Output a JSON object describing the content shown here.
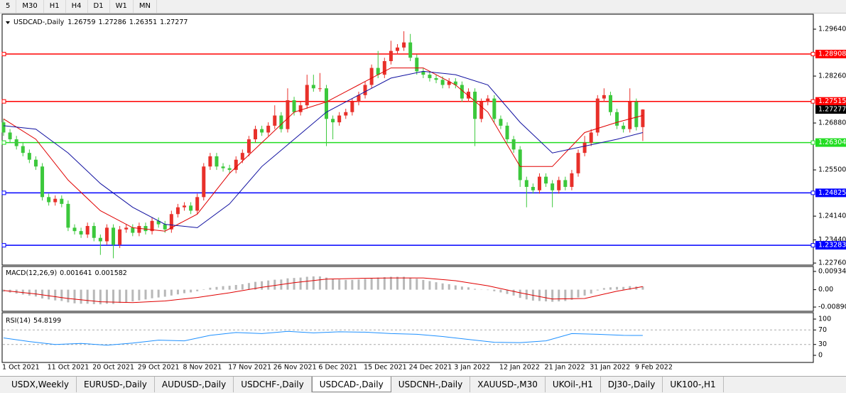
{
  "toolbar": {
    "timeframes": [
      "5",
      "M30",
      "H1",
      "H4",
      "D1",
      "W1",
      "MN"
    ]
  },
  "chart_data": [
    {
      "type": "candlestick",
      "title": "USDCAD-,Daily",
      "categories": [
        "1 Oct 2021",
        null,
        null,
        null,
        null,
        null,
        null,
        "11 Oct 2021",
        null,
        null,
        null,
        null,
        null,
        null,
        "20 Oct 2021",
        null,
        null,
        null,
        null,
        null,
        null,
        "29 Oct 2021",
        null,
        null,
        null,
        null,
        null,
        null,
        "8 Nov 2021",
        null,
        null,
        null,
        null,
        null,
        null,
        "17 Nov 2021",
        null,
        null,
        null,
        null,
        null,
        null,
        "26 Nov 2021",
        null,
        null,
        null,
        null,
        null,
        null,
        "6 Dec 2021",
        null,
        null,
        null,
        null,
        null,
        null,
        "15 Dec 2021",
        null,
        null,
        null,
        null,
        null,
        null,
        "24 Dec 2021",
        null,
        null,
        null,
        null,
        null,
        null,
        "3 Jan 2022",
        null,
        null,
        null,
        null,
        null,
        null,
        "12 Jan 2022",
        null,
        null,
        null,
        null,
        null,
        null,
        "21 Jan 2022",
        null,
        null,
        null,
        null,
        null,
        null,
        "31 Jan 2022",
        null,
        null,
        null,
        null,
        null,
        null,
        "9 Feb 2022",
        null
      ],
      "open": [
        1.269,
        1.266,
        1.264,
        1.262,
        1.26,
        1.258,
        1.256,
        1.247,
        1.2455,
        1.2465,
        1.245,
        1.238,
        1.237,
        1.236,
        1.2385,
        1.235,
        1.234,
        1.238,
        1.233,
        1.2375,
        1.238,
        1.2365,
        1.2385,
        1.237,
        1.24,
        1.239,
        1.2375,
        1.242,
        1.244,
        1.2445,
        1.243,
        1.247,
        1.256,
        1.259,
        1.256,
        1.2555,
        1.255,
        1.258,
        1.26,
        1.264,
        1.267,
        1.266,
        1.268,
        1.271,
        1.267,
        1.2755,
        1.272,
        1.274,
        1.28,
        1.279,
        1.279,
        1.27,
        1.269,
        1.271,
        1.272,
        1.275,
        1.277,
        1.28,
        1.285,
        1.283,
        1.287,
        1.29,
        1.291,
        1.2925,
        1.288,
        1.284,
        1.283,
        1.282,
        1.2815,
        1.28,
        1.281,
        1.28,
        1.276,
        1.278,
        1.27,
        1.275,
        1.276,
        1.27,
        1.268,
        1.264,
        1.261,
        1.252,
        1.25,
        1.249,
        1.253,
        1.251,
        1.249,
        1.252,
        1.25,
        1.254,
        1.26,
        1.263,
        1.266,
        1.276,
        1.277,
        1.272,
        1.268,
        1.267,
        1.275,
        1.26759
      ],
      "high": [
        1.27,
        1.267,
        1.265,
        1.263,
        1.261,
        1.259,
        1.257,
        1.248,
        1.2475,
        1.2475,
        1.246,
        1.239,
        1.238,
        1.2395,
        1.2395,
        1.236,
        1.239,
        1.239,
        1.2385,
        1.239,
        1.239,
        1.2395,
        1.2395,
        1.241,
        1.241,
        1.24,
        1.243,
        1.245,
        1.2455,
        1.2455,
        1.248,
        1.257,
        1.26,
        1.26,
        1.257,
        1.2565,
        1.259,
        1.261,
        1.265,
        1.268,
        1.268,
        1.269,
        1.274,
        1.272,
        1.279,
        1.2765,
        1.275,
        1.283,
        1.283,
        1.2835,
        1.28,
        1.271,
        1.272,
        1.273,
        1.276,
        1.278,
        1.281,
        1.286,
        1.29,
        1.288,
        1.293,
        1.292,
        1.2958,
        1.295,
        1.289,
        1.285,
        1.284,
        1.283,
        1.2825,
        1.282,
        1.282,
        1.281,
        1.279,
        1.279,
        1.276,
        1.277,
        1.277,
        1.271,
        1.269,
        1.265,
        1.262,
        1.253,
        1.251,
        1.254,
        1.254,
        1.252,
        1.253,
        1.253,
        1.255,
        1.261,
        1.265,
        1.267,
        1.277,
        1.279,
        1.278,
        1.273,
        1.269,
        1.279,
        1.276,
        1.27286
      ],
      "low": [
        1.265,
        1.263,
        1.261,
        1.259,
        1.257,
        1.255,
        1.246,
        1.2445,
        1.2445,
        1.244,
        1.237,
        1.236,
        1.235,
        1.235,
        1.234,
        1.23,
        1.233,
        1.229,
        1.232,
        1.2365,
        1.2355,
        1.2355,
        1.236,
        1.236,
        1.238,
        1.2365,
        1.2365,
        1.241,
        1.243,
        1.242,
        1.242,
        1.246,
        1.255,
        1.255,
        1.2545,
        1.254,
        1.254,
        1.257,
        1.259,
        1.263,
        1.265,
        1.265,
        1.267,
        1.266,
        1.266,
        1.271,
        1.271,
        1.273,
        1.278,
        1.278,
        1.262,
        1.264,
        1.268,
        1.27,
        1.271,
        1.274,
        1.276,
        1.279,
        1.282,
        1.282,
        1.286,
        1.289,
        1.29,
        1.287,
        1.283,
        1.282,
        1.281,
        1.2805,
        1.279,
        1.279,
        1.279,
        1.275,
        1.275,
        1.262,
        1.269,
        1.274,
        1.269,
        1.267,
        1.263,
        1.26,
        1.25,
        1.244,
        1.248,
        1.248,
        1.25,
        1.244,
        1.248,
        1.249,
        1.249,
        1.253,
        1.259,
        1.262,
        1.265,
        1.275,
        1.271,
        1.267,
        1.266,
        1.266,
        1.2666,
        1.26351
      ],
      "close": [
        1.266,
        1.264,
        1.262,
        1.26,
        1.258,
        1.256,
        1.247,
        1.2455,
        1.2465,
        1.245,
        1.238,
        1.237,
        1.236,
        1.2385,
        1.235,
        1.234,
        1.238,
        1.233,
        1.2375,
        1.238,
        1.2365,
        1.2385,
        1.237,
        1.24,
        1.239,
        1.2375,
        1.242,
        1.244,
        1.2445,
        1.243,
        1.247,
        1.256,
        1.259,
        1.256,
        1.2555,
        1.255,
        1.258,
        1.26,
        1.264,
        1.267,
        1.266,
        1.268,
        1.271,
        1.267,
        1.2755,
        1.272,
        1.274,
        1.28,
        1.279,
        1.279,
        1.27,
        1.269,
        1.271,
        1.272,
        1.275,
        1.277,
        1.28,
        1.285,
        1.283,
        1.287,
        1.29,
        1.291,
        1.2925,
        1.288,
        1.284,
        1.283,
        1.282,
        1.2815,
        1.28,
        1.281,
        1.28,
        1.276,
        1.278,
        1.27,
        1.275,
        1.276,
        1.27,
        1.268,
        1.264,
        1.261,
        1.252,
        1.25,
        1.249,
        1.253,
        1.251,
        1.249,
        1.252,
        1.25,
        1.254,
        1.26,
        1.263,
        1.266,
        1.276,
        1.277,
        1.272,
        1.268,
        1.267,
        1.275,
        1.2676,
        1.27277
      ],
      "up_color": "#e8302a",
      "down_color": "#3cc83c",
      "series": [
        {
          "color": "#e00000",
          "x": [
            0,
            5,
            10,
            15,
            20,
            25,
            30,
            35,
            40,
            45,
            50,
            55,
            60,
            65,
            70,
            75,
            80,
            85,
            90,
            95,
            99
          ],
          "values": [
            1.27,
            1.264,
            1.252,
            1.243,
            1.238,
            1.237,
            1.242,
            1.254,
            1.263,
            1.272,
            1.275,
            1.28,
            1.285,
            1.285,
            1.28,
            1.272,
            1.256,
            1.256,
            1.266,
            1.269,
            1.271
          ]
        },
        {
          "color": "#1010a0",
          "x": [
            0,
            5,
            10,
            15,
            20,
            25,
            30,
            35,
            40,
            45,
            50,
            55,
            60,
            65,
            70,
            75,
            80,
            85,
            90,
            95,
            99
          ],
          "values": [
            1.268,
            1.267,
            1.26,
            1.251,
            1.244,
            1.239,
            1.238,
            1.245,
            1.256,
            1.264,
            1.272,
            1.277,
            1.282,
            1.284,
            1.283,
            1.28,
            1.269,
            1.26,
            1.262,
            1.264,
            1.266
          ]
        }
      ],
      "levels": [
        {
          "value": 1.28908,
          "color": "#ff0000"
        },
        {
          "value": 1.27515,
          "color": "#ff0000"
        },
        {
          "value": 1.26304,
          "color": "#22dd22"
        },
        {
          "value": 1.24825,
          "color": "#0000ff"
        },
        {
          "value": 1.23283,
          "color": "#0000ff"
        }
      ],
      "ylim": [
        1.227,
        1.3008
      ],
      "yticks": [
        {
          "value": 1.2964,
          "label": "1.29640"
        },
        {
          "value": 1.2826,
          "label": "1.28260"
        },
        {
          "value": 1.2688,
          "label": "1.26880"
        },
        {
          "value": 1.255,
          "label": "1.25500"
        },
        {
          "value": 1.2414,
          "label": "1.24140"
        },
        {
          "value": 1.2344,
          "label": "1.23440"
        },
        {
          "value": 1.2276,
          "label": "1.22760"
        }
      ]
    },
    {
      "type": "macd",
      "title": "MACD(12,26,9)",
      "histogram": {
        "color": "#b8b8b8",
        "values": [
          -0.001,
          -0.0015,
          -0.002,
          -0.0025,
          -0.003,
          -0.0035,
          -0.0045,
          -0.005,
          -0.0055,
          -0.0058,
          -0.0065,
          -0.007,
          -0.0072,
          -0.0072,
          -0.0074,
          -0.0075,
          -0.0072,
          -0.0073,
          -0.0068,
          -0.0064,
          -0.006,
          -0.0055,
          -0.005,
          -0.0044,
          -0.004,
          -0.0036,
          -0.003,
          -0.0024,
          -0.0018,
          -0.0014,
          -0.0008,
          0.0002,
          0.001,
          0.0014,
          0.0018,
          0.002,
          0.0024,
          0.0028,
          0.0034,
          0.004,
          0.0043,
          0.0047,
          0.0051,
          0.0052,
          0.0058,
          0.006,
          0.0062,
          0.0066,
          0.0068,
          0.0068,
          0.0062,
          0.0056,
          0.0052,
          0.005,
          0.005,
          0.0052,
          0.0055,
          0.006,
          0.0062,
          0.0064,
          0.0066,
          0.0066,
          0.0066,
          0.0062,
          0.0056,
          0.005,
          0.0044,
          0.0038,
          0.0032,
          0.0028,
          0.0022,
          0.0016,
          0.0012,
          0.0004,
          0.0001,
          -0.0002,
          -0.0008,
          -0.0014,
          -0.0022,
          -0.003,
          -0.0042,
          -0.005,
          -0.0056,
          -0.0058,
          -0.006,
          -0.0062,
          -0.006,
          -0.0058,
          -0.0052,
          -0.004,
          -0.003,
          -0.002,
          -0.0004,
          0.0008,
          0.0012,
          0.0014,
          0.0014,
          0.0018,
          0.0016,
          0.001641
        ]
      },
      "signal": {
        "color": "#e00000",
        "x": [
          0,
          5,
          10,
          15,
          20,
          25,
          30,
          35,
          40,
          45,
          50,
          55,
          60,
          65,
          70,
          75,
          80,
          85,
          90,
          95,
          99
        ],
        "values": [
          -0.0004,
          -0.0022,
          -0.0045,
          -0.0062,
          -0.0066,
          -0.0058,
          -0.004,
          -0.0016,
          0.0012,
          0.0036,
          0.0054,
          0.0058,
          0.006,
          0.006,
          0.0046,
          0.002,
          -0.0016,
          -0.0048,
          -0.0045,
          -0.0008,
          0.001582
        ]
      },
      "ylim": [
        -0.0107,
        0.0115
      ],
      "yticks": [
        0.009345,
        {
          "value": 0,
          "label": "0.00"
        },
        {
          "value": -0.0089,
          "label": "-0.00890"
        }
      ]
    },
    {
      "type": "line",
      "title": "RSI(14)",
      "series": [
        {
          "color": "#1e90ff",
          "x": [
            0,
            4,
            8,
            12,
            16,
            20,
            24,
            28,
            32,
            36,
            40,
            44,
            48,
            52,
            56,
            60,
            64,
            68,
            72,
            76,
            80,
            84,
            88,
            92,
            96,
            99
          ],
          "values": [
            48,
            38,
            30,
            33,
            28,
            34,
            42,
            40,
            55,
            63,
            60,
            66,
            62,
            65,
            64,
            60,
            58,
            52,
            44,
            36,
            35,
            40,
            60,
            58,
            55,
            54.8199
          ]
        }
      ],
      "levels": [
        70,
        30
      ],
      "ylim": [
        0,
        100
      ],
      "yticks": [
        100,
        70,
        30,
        0
      ]
    }
  ],
  "tabs": [
    "USDX,Weekly",
    "EURUSD-,Daily",
    "AUDUSD-,Daily",
    "USDCHF-,Daily",
    "USDCAD-,Daily",
    "USDCNH-,Daily",
    "XAUUSD-,M30",
    "UKOil-,H1",
    "DJ30-,Daily",
    "UK100-,H1"
  ],
  "active_tab": 4
}
